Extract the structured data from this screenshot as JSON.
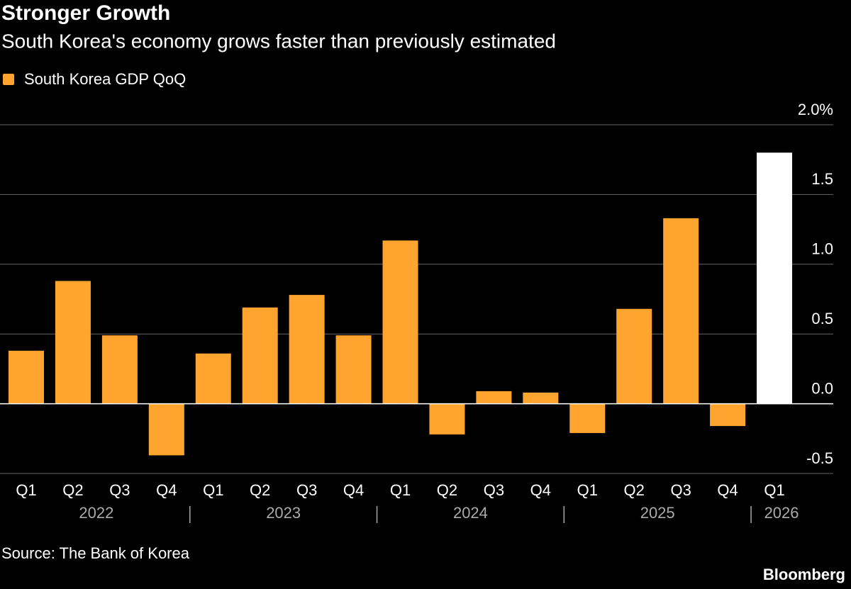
{
  "chart_data": {
    "type": "bar",
    "title": "Stronger Growth",
    "subtitle": "South Korea's economy grows faster than previously estimated",
    "categories": [
      "Q1",
      "Q2",
      "Q3",
      "Q4",
      "Q1",
      "Q2",
      "Q3",
      "Q4",
      "Q1",
      "Q2",
      "Q3",
      "Q4",
      "Q1",
      "Q2",
      "Q3",
      "Q4",
      "Q1"
    ],
    "x_groups": [
      "2022",
      "2023",
      "2024",
      "2025",
      "2026"
    ],
    "series": [
      {
        "name": "South Korea GDP QoQ",
        "color": "#ffa42e",
        "values": [
          0.38,
          0.88,
          0.49,
          -0.37,
          0.36,
          0.69,
          0.78,
          0.49,
          1.17,
          -0.22,
          0.09,
          0.08,
          -0.21,
          0.68,
          1.33,
          -0.16,
          1.8
        ],
        "colors": [
          "#ffa42e",
          "#ffa42e",
          "#ffa42e",
          "#ffa42e",
          "#ffa42e",
          "#ffa42e",
          "#ffa42e",
          "#ffa42e",
          "#ffa42e",
          "#ffa42e",
          "#ffa42e",
          "#ffa42e",
          "#ffa42e",
          "#ffa42e",
          "#ffa42e",
          "#ffa42e",
          "#ffffff"
        ]
      }
    ],
    "ylim": [
      -0.5,
      2.0
    ],
    "yticks": [
      {
        "value": 2.0,
        "label": "2.0%"
      },
      1.5,
      {
        "value": 1.0,
        "label": "1.0"
      },
      0.5,
      {
        "value": 0.0,
        "label": "0.0"
      },
      -0.5
    ],
    "grid": true,
    "source": "Source: The Bank of Korea",
    "brand": "Bloomberg"
  }
}
